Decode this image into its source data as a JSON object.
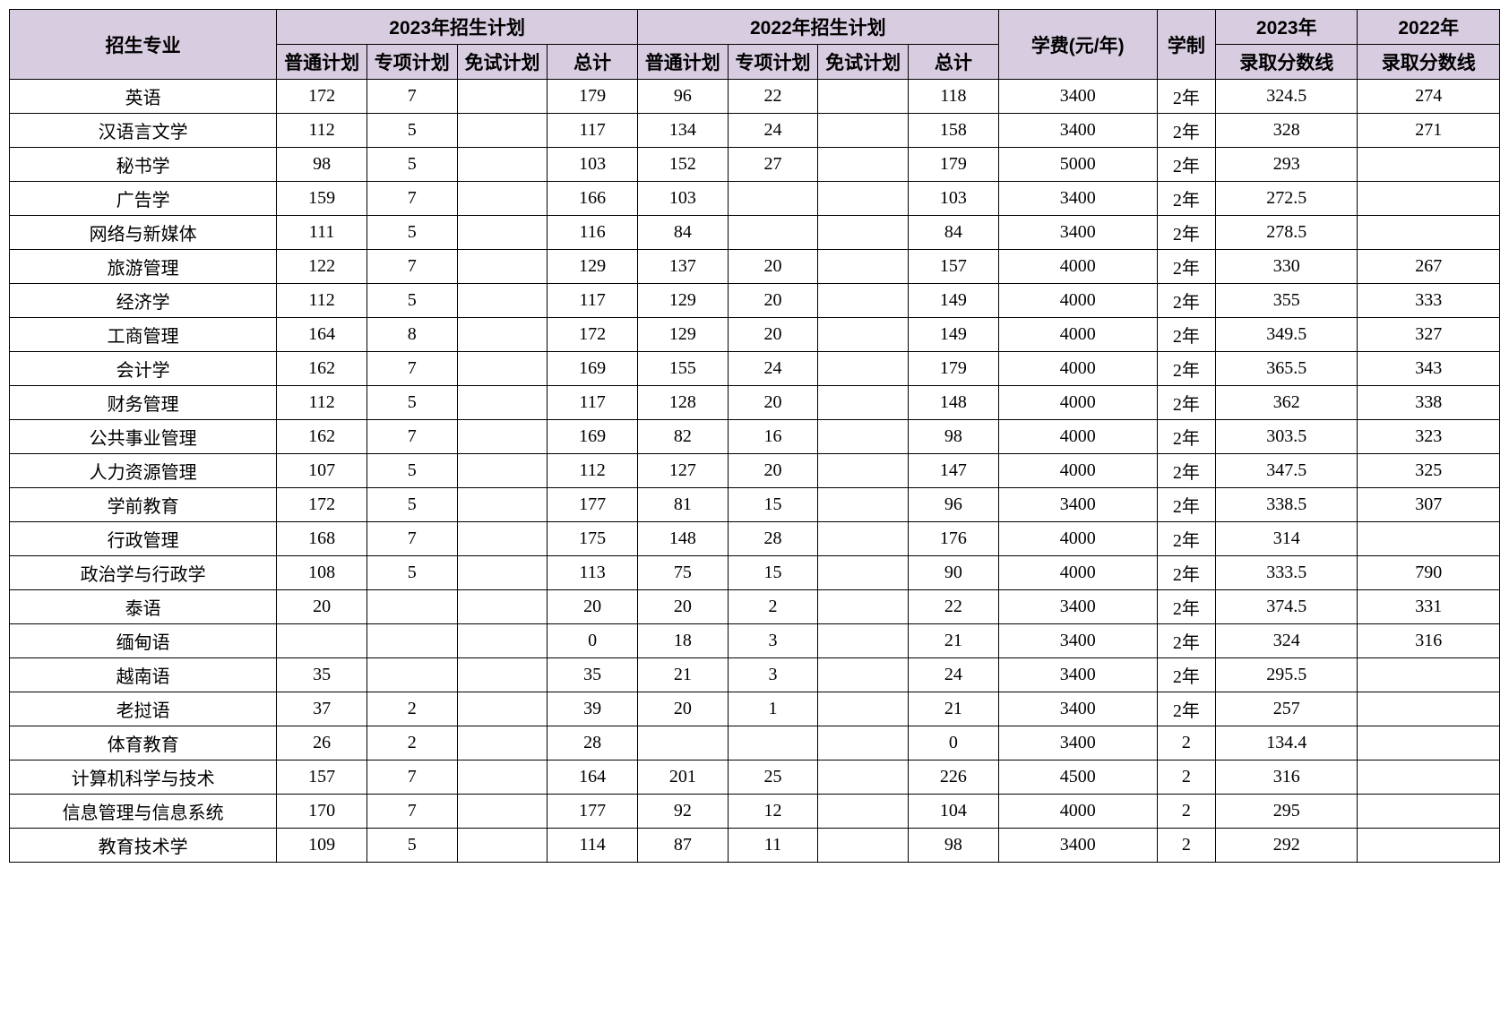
{
  "header": {
    "major": "招生专业",
    "plan2023": "2023年招生计划",
    "plan2022": "2022年招生计划",
    "fee": "学费(元/年)",
    "duration": "学制",
    "score2023_a": "2023年",
    "score2023_b": "录取分数线",
    "score2022_a": "2022年",
    "score2022_b": "录取分数线",
    "sub_regular": "普通计划",
    "sub_special": "专项计划",
    "sub_exempt": "免试计划",
    "sub_total": "总计"
  },
  "rows": [
    {
      "major": "英语",
      "r23": "172",
      "s23": "7",
      "e23": "",
      "t23": "179",
      "r22": "96",
      "s22": "22",
      "e22": "",
      "t22": "118",
      "fee": "3400",
      "dur": "2年",
      "sc23": "324.5",
      "sc22": "274"
    },
    {
      "major": "汉语言文学",
      "r23": "112",
      "s23": "5",
      "e23": "",
      "t23": "117",
      "r22": "134",
      "s22": "24",
      "e22": "",
      "t22": "158",
      "fee": "3400",
      "dur": "2年",
      "sc23": "328",
      "sc22": "271"
    },
    {
      "major": "秘书学",
      "r23": "98",
      "s23": "5",
      "e23": "",
      "t23": "103",
      "r22": "152",
      "s22": "27",
      "e22": "",
      "t22": "179",
      "fee": "5000",
      "dur": "2年",
      "sc23": "293",
      "sc22": ""
    },
    {
      "major": "广告学",
      "r23": "159",
      "s23": "7",
      "e23": "",
      "t23": "166",
      "r22": "103",
      "s22": "",
      "e22": "",
      "t22": "103",
      "fee": "3400",
      "dur": "2年",
      "sc23": "272.5",
      "sc22": ""
    },
    {
      "major": "网络与新媒体",
      "r23": "111",
      "s23": "5",
      "e23": "",
      "t23": "116",
      "r22": "84",
      "s22": "",
      "e22": "",
      "t22": "84",
      "fee": "3400",
      "dur": "2年",
      "sc23": "278.5",
      "sc22": ""
    },
    {
      "major": "旅游管理",
      "r23": "122",
      "s23": "7",
      "e23": "",
      "t23": "129",
      "r22": "137",
      "s22": "20",
      "e22": "",
      "t22": "157",
      "fee": "4000",
      "dur": "2年",
      "sc23": "330",
      "sc22": "267"
    },
    {
      "major": "经济学",
      "r23": "112",
      "s23": "5",
      "e23": "",
      "t23": "117",
      "r22": "129",
      "s22": "20",
      "e22": "",
      "t22": "149",
      "fee": "4000",
      "dur": "2年",
      "sc23": "355",
      "sc22": "333"
    },
    {
      "major": "工商管理",
      "r23": "164",
      "s23": "8",
      "e23": "",
      "t23": "172",
      "r22": "129",
      "s22": "20",
      "e22": "",
      "t22": "149",
      "fee": "4000",
      "dur": "2年",
      "sc23": "349.5",
      "sc22": "327"
    },
    {
      "major": "会计学",
      "r23": "162",
      "s23": "7",
      "e23": "",
      "t23": "169",
      "r22": "155",
      "s22": "24",
      "e22": "",
      "t22": "179",
      "fee": "4000",
      "dur": "2年",
      "sc23": "365.5",
      "sc22": "343"
    },
    {
      "major": "财务管理",
      "r23": "112",
      "s23": "5",
      "e23": "",
      "t23": "117",
      "r22": "128",
      "s22": "20",
      "e22": "",
      "t22": "148",
      "fee": "4000",
      "dur": "2年",
      "sc23": "362",
      "sc22": "338"
    },
    {
      "major": "公共事业管理",
      "r23": "162",
      "s23": "7",
      "e23": "",
      "t23": "169",
      "r22": "82",
      "s22": "16",
      "e22": "",
      "t22": "98",
      "fee": "4000",
      "dur": "2年",
      "sc23": "303.5",
      "sc22": "323"
    },
    {
      "major": "人力资源管理",
      "r23": "107",
      "s23": "5",
      "e23": "",
      "t23": "112",
      "r22": "127",
      "s22": "20",
      "e22": "",
      "t22": "147",
      "fee": "4000",
      "dur": "2年",
      "sc23": "347.5",
      "sc22": "325"
    },
    {
      "major": "学前教育",
      "r23": "172",
      "s23": "5",
      "e23": "",
      "t23": "177",
      "r22": "81",
      "s22": "15",
      "e22": "",
      "t22": "96",
      "fee": "3400",
      "dur": "2年",
      "sc23": "338.5",
      "sc22": "307"
    },
    {
      "major": "行政管理",
      "r23": "168",
      "s23": "7",
      "e23": "",
      "t23": "175",
      "r22": "148",
      "s22": "28",
      "e22": "",
      "t22": "176",
      "fee": "4000",
      "dur": "2年",
      "sc23": "314",
      "sc22": ""
    },
    {
      "major": "政治学与行政学",
      "r23": "108",
      "s23": "5",
      "e23": "",
      "t23": "113",
      "r22": "75",
      "s22": "15",
      "e22": "",
      "t22": "90",
      "fee": "4000",
      "dur": "2年",
      "sc23": "333.5",
      "sc22": "790"
    },
    {
      "major": "泰语",
      "r23": "20",
      "s23": "",
      "e23": "",
      "t23": "20",
      "r22": "20",
      "s22": "2",
      "e22": "",
      "t22": "22",
      "fee": "3400",
      "dur": "2年",
      "sc23": "374.5",
      "sc22": "331"
    },
    {
      "major": "缅甸语",
      "r23": "",
      "s23": "",
      "e23": "",
      "t23": "0",
      "r22": "18",
      "s22": "3",
      "e22": "",
      "t22": "21",
      "fee": "3400",
      "dur": "2年",
      "sc23": "324",
      "sc22": "316"
    },
    {
      "major": "越南语",
      "r23": "35",
      "s23": "",
      "e23": "",
      "t23": "35",
      "r22": "21",
      "s22": "3",
      "e22": "",
      "t22": "24",
      "fee": "3400",
      "dur": "2年",
      "sc23": "295.5",
      "sc22": ""
    },
    {
      "major": "老挝语",
      "r23": "37",
      "s23": "2",
      "e23": "",
      "t23": "39",
      "r22": "20",
      "s22": "1",
      "e22": "",
      "t22": "21",
      "fee": "3400",
      "dur": "2年",
      "sc23": "257",
      "sc22": ""
    },
    {
      "major": "体育教育",
      "r23": "26",
      "s23": "2",
      "e23": "",
      "t23": "28",
      "r22": "",
      "s22": "",
      "e22": "",
      "t22": "0",
      "fee": "3400",
      "dur": "2",
      "sc23": "134.4",
      "sc22": ""
    },
    {
      "major": "计算机科学与技术",
      "r23": "157",
      "s23": "7",
      "e23": "",
      "t23": "164",
      "r22": "201",
      "s22": "25",
      "e22": "",
      "t22": "226",
      "fee": "4500",
      "dur": "2",
      "sc23": "316",
      "sc22": ""
    },
    {
      "major": "信息管理与信息系统",
      "r23": "170",
      "s23": "7",
      "e23": "",
      "t23": "177",
      "r22": "92",
      "s22": "12",
      "e22": "",
      "t22": "104",
      "fee": "4000",
      "dur": "2",
      "sc23": "295",
      "sc22": ""
    },
    {
      "major": "教育技术学",
      "r23": "109",
      "s23": "5",
      "e23": "",
      "t23": "114",
      "r22": "87",
      "s22": "11",
      "e22": "",
      "t22": "98",
      "fee": "3400",
      "dur": "2",
      "sc23": "292",
      "sc22": ""
    }
  ]
}
